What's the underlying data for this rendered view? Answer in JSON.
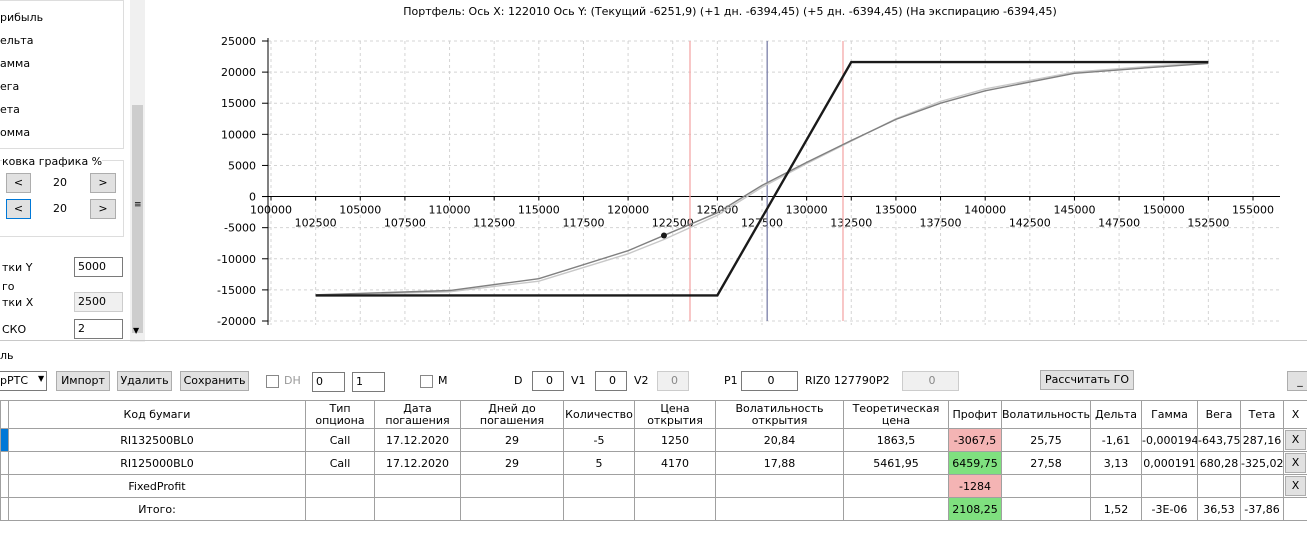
{
  "left_panel": {
    "checkbox_labels": [
      "рибыль",
      "ельта",
      "амма",
      "ега",
      "ета",
      "омма"
    ],
    "group_title": "ковка графика %",
    "zoom_rows": [
      {
        "left": "<",
        "value": "20",
        "right": ">"
      },
      {
        "left": "<",
        "value": "20",
        "right": ">"
      }
    ],
    "fields": [
      {
        "label": "тки Y",
        "value": "5000"
      },
      {
        "label": "го"
      },
      {
        "label": "тки X",
        "value": "2500"
      },
      {
        "label": "СКО",
        "value": "2"
      }
    ]
  },
  "chart_data": {
    "type": "line",
    "title": "Портфель: Ось X: 122010 Ось Y:  (Текущий -6251,9)  (+1 дн. -6394,45)  (+5 дн. -6394,45)  (На экспирацию -6394,45)",
    "xlim": [
      100000,
      155000
    ],
    "xticks": [
      100000,
      102500,
      105000,
      107500,
      110000,
      112500,
      115000,
      117500,
      120000,
      122500,
      125000,
      127500,
      130000,
      132500,
      135000,
      137500,
      140000,
      142500,
      145000,
      147500,
      150000,
      152500,
      155000
    ],
    "ylim": [
      -20000,
      25000
    ],
    "yticks": [
      -20000,
      -15000,
      -10000,
      -5000,
      0,
      5000,
      10000,
      15000,
      20000,
      25000
    ],
    "grid": true,
    "series": [
      {
        "color": "#c8c8c8",
        "x": [
          102500,
          110000,
          115000,
          120000,
          122010,
          125000,
          127500,
          130000,
          132500,
          135000,
          137500,
          140000,
          145000,
          150000,
          152500
        ],
        "values": [
          -15850,
          -15300,
          -13600,
          -9200,
          -6900,
          -3000,
          1500,
          5300,
          8900,
          12500,
          15300,
          17300,
          20000,
          21100,
          21500
        ]
      },
      {
        "color": "#808080",
        "x": [
          102500,
          110000,
          115000,
          120000,
          122010,
          125000,
          127500,
          130000,
          132500,
          135000,
          137500,
          140000,
          145000,
          150000,
          152500
        ],
        "values": [
          -15800,
          -15100,
          -13200,
          -8700,
          -6251.9,
          -2600,
          1800,
          5500,
          9000,
          12400,
          15000,
          17000,
          19800,
          20900,
          21400
        ]
      },
      {
        "color": "#1a1a1a",
        "x": [
          102500,
          125000,
          132500,
          152500
        ],
        "values": [
          -15884,
          -15884,
          21616,
          21616
        ]
      }
    ],
    "vlines": [
      {
        "value": 123467,
        "color": "#f4a8a8"
      },
      {
        "value": 127790,
        "color": "#7a7fa8"
      },
      {
        "value": 132036,
        "color": "#f4a8a8"
      }
    ],
    "marker": {
      "x": 122010,
      "y": -6251.9
    }
  },
  "section_label": "ль",
  "toolbar": {
    "dropdown": "рРТС",
    "buttons": [
      "Импорт",
      "Удалить",
      "Сохранить"
    ],
    "dh_label": "DH",
    "spin1": "0",
    "spin2": "1",
    "m_label": "M",
    "d_label": "D",
    "d_value": "0",
    "v1_label": "V1",
    "v1_value": "0",
    "v2_label": "V2",
    "v2_value": "0",
    "p1_label": "P1",
    "p1_value": "0",
    "riz": "RIZ0 127790",
    "p2_label": "P2",
    "p2_value": "0",
    "calc_button": "Рассчитать ГО",
    "min_button": "_"
  },
  "table": {
    "headers": [
      "Код бумаги",
      "Тип\nопциона",
      "Дата\nпогашения",
      "Дней до\nпогашения",
      "Количество",
      "Цена\nоткрытия",
      "Волатильность\nоткрытия",
      "Теоретическая\nцена",
      "Профит",
      "Волатильность",
      "Дельта",
      "Гамма",
      "Вега",
      "Тета",
      "X"
    ],
    "rows": [
      [
        "RI132500BL0",
        "Call",
        "17.12.2020",
        "29",
        "-5",
        "1250",
        "20,84",
        "1863,5",
        "-3067,5",
        "25,75",
        "-1,61",
        "-0,000194",
        "-643,75",
        "287,16",
        "X"
      ],
      [
        "RI125000BL0",
        "Call",
        "17.12.2020",
        "29",
        "5",
        "4170",
        "17,88",
        "5461,95",
        "6459,75",
        "27,58",
        "3,13",
        "0,000191",
        "680,28",
        "-325,02",
        "X"
      ],
      [
        "FixedProfit",
        null,
        null,
        null,
        null,
        null,
        null,
        null,
        "-1284",
        null,
        null,
        null,
        null,
        null,
        "X"
      ],
      [
        "Итого:",
        null,
        null,
        null,
        null,
        null,
        null,
        null,
        "2108,25",
        null,
        "1,52",
        "-3E-06",
        "36,53",
        "-37,86",
        null
      ]
    ],
    "profit_colors": [
      "#f4b4b4",
      "#7fe07f",
      "#f4b4b4",
      "#7fe07f"
    ]
  }
}
